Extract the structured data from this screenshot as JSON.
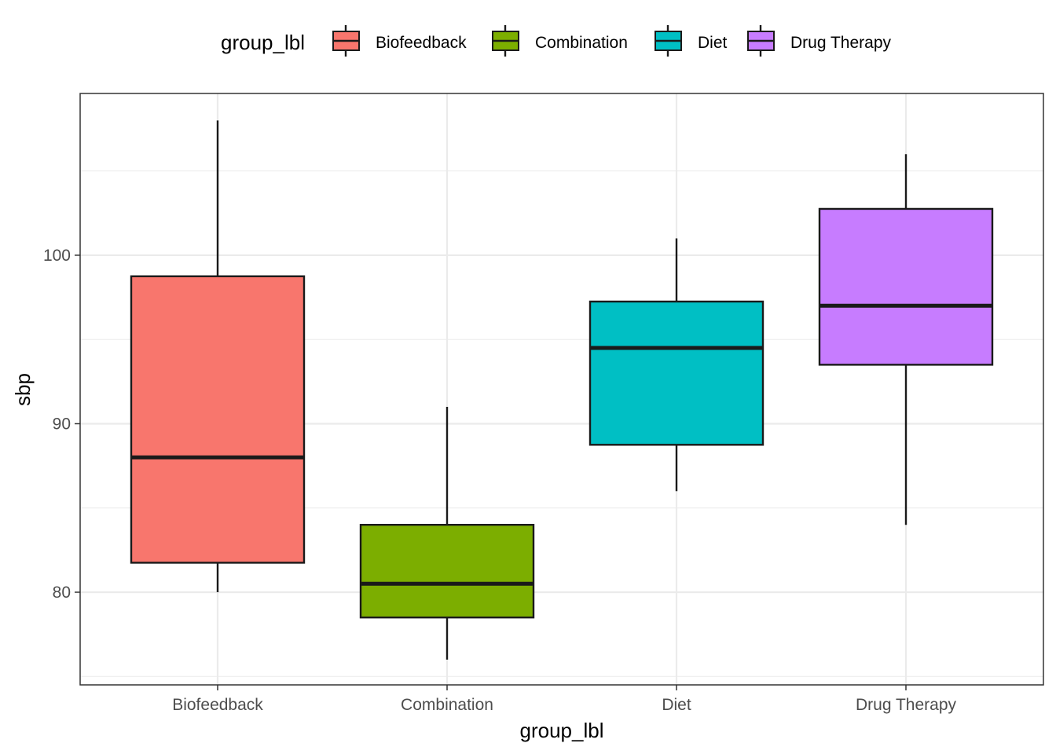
{
  "chart_data": {
    "type": "boxplot",
    "xlabel": "group_lbl",
    "ylabel": "sbp",
    "ylim": [
      74.5,
      109.6
    ],
    "yticks": [
      80,
      90,
      100
    ],
    "ytick_labels": [
      "80",
      "90",
      "100"
    ],
    "minor_yticks": [
      75,
      85,
      95,
      105
    ],
    "grid": true,
    "legend": {
      "title": "group_lbl",
      "position": "top",
      "items": [
        "Biofeedback",
        "Combination",
        "Diet",
        "Drug Therapy"
      ]
    },
    "categories": [
      "Biofeedback",
      "Combination",
      "Diet",
      "Drug Therapy"
    ],
    "series": [
      {
        "name": "Biofeedback",
        "color": "#F8766D",
        "whisker_low": 80,
        "q1": 81.75,
        "median": 88,
        "q3": 98.75,
        "whisker_high": 108
      },
      {
        "name": "Combination",
        "color": "#7CAE00",
        "whisker_low": 76,
        "q1": 78.5,
        "median": 80.5,
        "q3": 84,
        "whisker_high": 91
      },
      {
        "name": "Diet",
        "color": "#00BFC4",
        "whisker_low": 86,
        "q1": 88.75,
        "median": 94.5,
        "q3": 97.25,
        "whisker_high": 101
      },
      {
        "name": "Drug Therapy",
        "color": "#C77CFF",
        "whisker_low": 84,
        "q1": 93.5,
        "median": 97,
        "q3": 102.75,
        "whisker_high": 106
      }
    ]
  }
}
